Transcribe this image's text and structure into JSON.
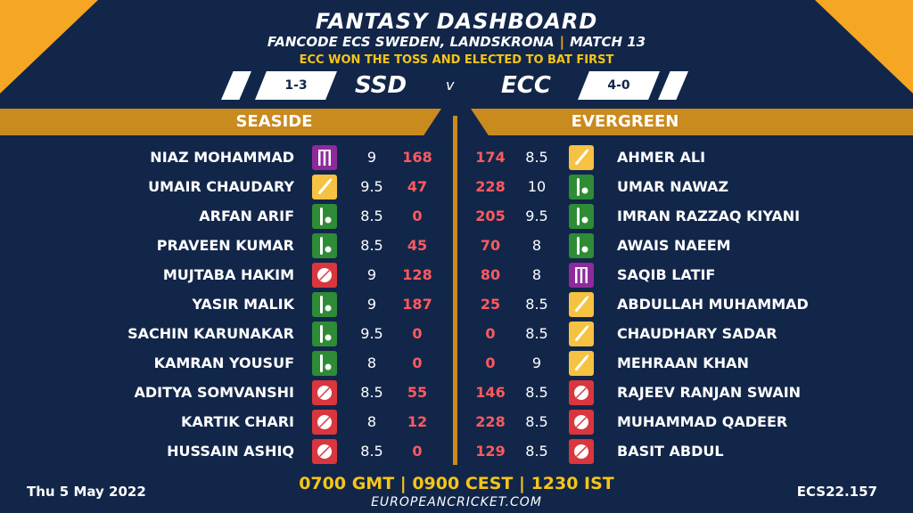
{
  "header": {
    "title": "FANTASY DASHBOARD",
    "subtitle_event": "FANCODE ECS SWEDEN, LANDSKRONA",
    "subtitle_sep": "|",
    "subtitle_match": "MATCH 13",
    "toss": "ECC WON THE TOSS AND ELECTED TO BAT FIRST"
  },
  "match": {
    "home_code": "SSD",
    "home_record": "1-3",
    "away_code": "ECC",
    "away_record": "4-0",
    "vs": "v"
  },
  "teams": {
    "left_name": "SEASIDE",
    "right_name": "EVERGREEN"
  },
  "left_players": [
    {
      "name": "NIAZ MOHAMMAD",
      "role": "wk",
      "credit": "9",
      "points": "168"
    },
    {
      "name": "UMAIR CHAUDARY",
      "role": "bat",
      "credit": "9.5",
      "points": "47"
    },
    {
      "name": "ARFAN ARIF",
      "role": "allr",
      "credit": "8.5",
      "points": "0"
    },
    {
      "name": "PRAVEEN KUMAR",
      "role": "allr",
      "credit": "8.5",
      "points": "45"
    },
    {
      "name": "MUJTABA HAKIM",
      "role": "bowl",
      "credit": "9",
      "points": "128"
    },
    {
      "name": "YASIR MALIK",
      "role": "allr",
      "credit": "9",
      "points": "187"
    },
    {
      "name": "SACHIN KARUNAKAR",
      "role": "allr",
      "credit": "9.5",
      "points": "0"
    },
    {
      "name": "KAMRAN YOUSUF",
      "role": "allr",
      "credit": "8",
      "points": "0"
    },
    {
      "name": "ADITYA SOMVANSHI",
      "role": "bowl",
      "credit": "8.5",
      "points": "55"
    },
    {
      "name": "KARTIK CHARI",
      "role": "bowl",
      "credit": "8",
      "points": "12"
    },
    {
      "name": "HUSSAIN ASHIQ",
      "role": "bowl",
      "credit": "8.5",
      "points": "0"
    }
  ],
  "right_players": [
    {
      "name": "AHMER ALI",
      "role": "bat",
      "credit": "8.5",
      "points": "174"
    },
    {
      "name": "UMAR NAWAZ",
      "role": "allr",
      "credit": "10",
      "points": "228"
    },
    {
      "name": "IMRAN RAZZAQ KIYANI",
      "role": "allr",
      "credit": "9.5",
      "points": "205"
    },
    {
      "name": "AWAIS NAEEM",
      "role": "allr",
      "credit": "8",
      "points": "70"
    },
    {
      "name": "SAQIB LATIF",
      "role": "wk",
      "credit": "8",
      "points": "80"
    },
    {
      "name": "ABDULLAH MUHAMMAD",
      "role": "bat",
      "credit": "8.5",
      "points": "25"
    },
    {
      "name": "CHAUDHARY SADAR",
      "role": "bat",
      "credit": "8.5",
      "points": "0"
    },
    {
      "name": "MEHRAAN KHAN",
      "role": "bat",
      "credit": "9",
      "points": "0"
    },
    {
      "name": "RAJEEV RANJAN SWAIN",
      "role": "bowl",
      "credit": "8.5",
      "points": "146"
    },
    {
      "name": "MUHAMMAD QADEER",
      "role": "bowl",
      "credit": "8.5",
      "points": "228"
    },
    {
      "name": "BASIT ABDUL",
      "role": "bowl",
      "credit": "8.5",
      "points": "129"
    }
  ],
  "footer": {
    "date": "Thu 5 May 2022",
    "times": "0700 GMT | 0900 CEST | 1230 IST",
    "site": "EUROPEANCRICKET.COM",
    "code": "ECS22.157"
  },
  "colors": {
    "background": "#12264a",
    "accent": "#f5a623",
    "points": "#ff5a5f"
  }
}
